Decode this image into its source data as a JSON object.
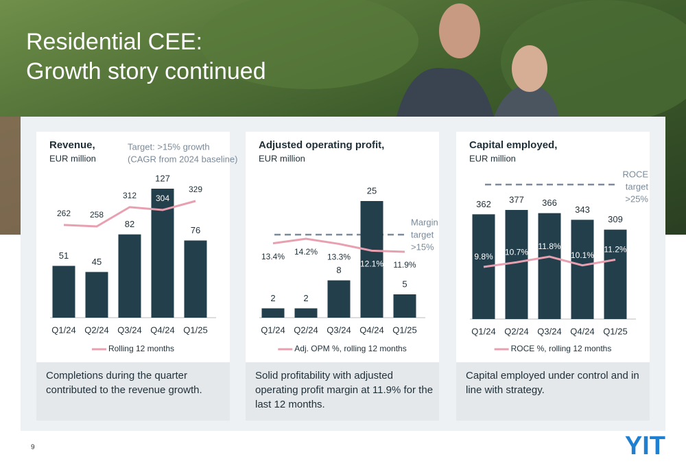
{
  "slide": {
    "title": [
      "Residential CEE:",
      "Growth story continued"
    ],
    "page": "9",
    "logo": "YIT"
  },
  "chart_data": [
    {
      "type": "bar",
      "title": "Revenue,",
      "subtitle": "EUR million",
      "annotation": [
        "Target: >15% growth",
        "(CAGR from 2024 baseline)"
      ],
      "categories": [
        "Q1/24",
        "Q2/24",
        "Q3/24",
        "Q4/24",
        "Q1/25"
      ],
      "series": [
        {
          "color": "#243f4c",
          "values": [
            51,
            45,
            82,
            127,
            76
          ]
        },
        {
          "name": "Rolling 12 months",
          "axis": "y2",
          "color": "#e8a0b0",
          "values": [
            262,
            258,
            312,
            304,
            329
          ]
        }
      ],
      "caption": [
        "Completions during the quarter",
        "contributed to the revenue growth."
      ]
    },
    {
      "type": "bar",
      "title": "Adjusted operating profit,",
      "subtitle": "EUR million",
      "annotation": [
        "Margin",
        "target",
        ">15%"
      ],
      "categories": [
        "Q1/24",
        "Q2/24",
        "Q3/24",
        "Q4/24",
        "Q1/25"
      ],
      "series": [
        {
          "color": "#243f4c",
          "values": [
            2,
            2,
            8,
            25,
            5
          ]
        },
        {
          "name": "Adj. OPM %, rolling 12 months",
          "axis": "y2",
          "color": "#e8a0b0",
          "values": [
            13.4,
            14.2,
            13.3,
            12.1,
            11.9
          ],
          "value_labels": [
            "13.4%",
            "14.2%",
            "13.3%",
            "12.1%",
            "11.9%"
          ]
        }
      ],
      "caption": [
        "Solid profitability with adjusted",
        "operating profit margin at 11.9% for the",
        "last 12 months."
      ]
    },
    {
      "type": "bar",
      "title": "Capital employed,",
      "subtitle": "EUR million",
      "annotation": [
        "ROCE",
        "target",
        ">25%"
      ],
      "categories": [
        "Q1/24",
        "Q2/24",
        "Q3/24",
        "Q4/24",
        "Q1/25"
      ],
      "series": [
        {
          "color": "#243f4c",
          "values": [
            362,
            377,
            366,
            343,
            309
          ]
        },
        {
          "name": "ROCE %, rolling 12 months",
          "axis": "y2",
          "color": "#e8a0b0",
          "values": [
            9.8,
            10.7,
            11.8,
            10.1,
            11.2
          ],
          "value_labels": [
            "9.8%",
            "10.7%",
            "11.8%",
            "10.1%",
            "11.2%"
          ]
        }
      ],
      "caption": [
        "Capital employed under control and in",
        "line with strategy."
      ]
    }
  ]
}
